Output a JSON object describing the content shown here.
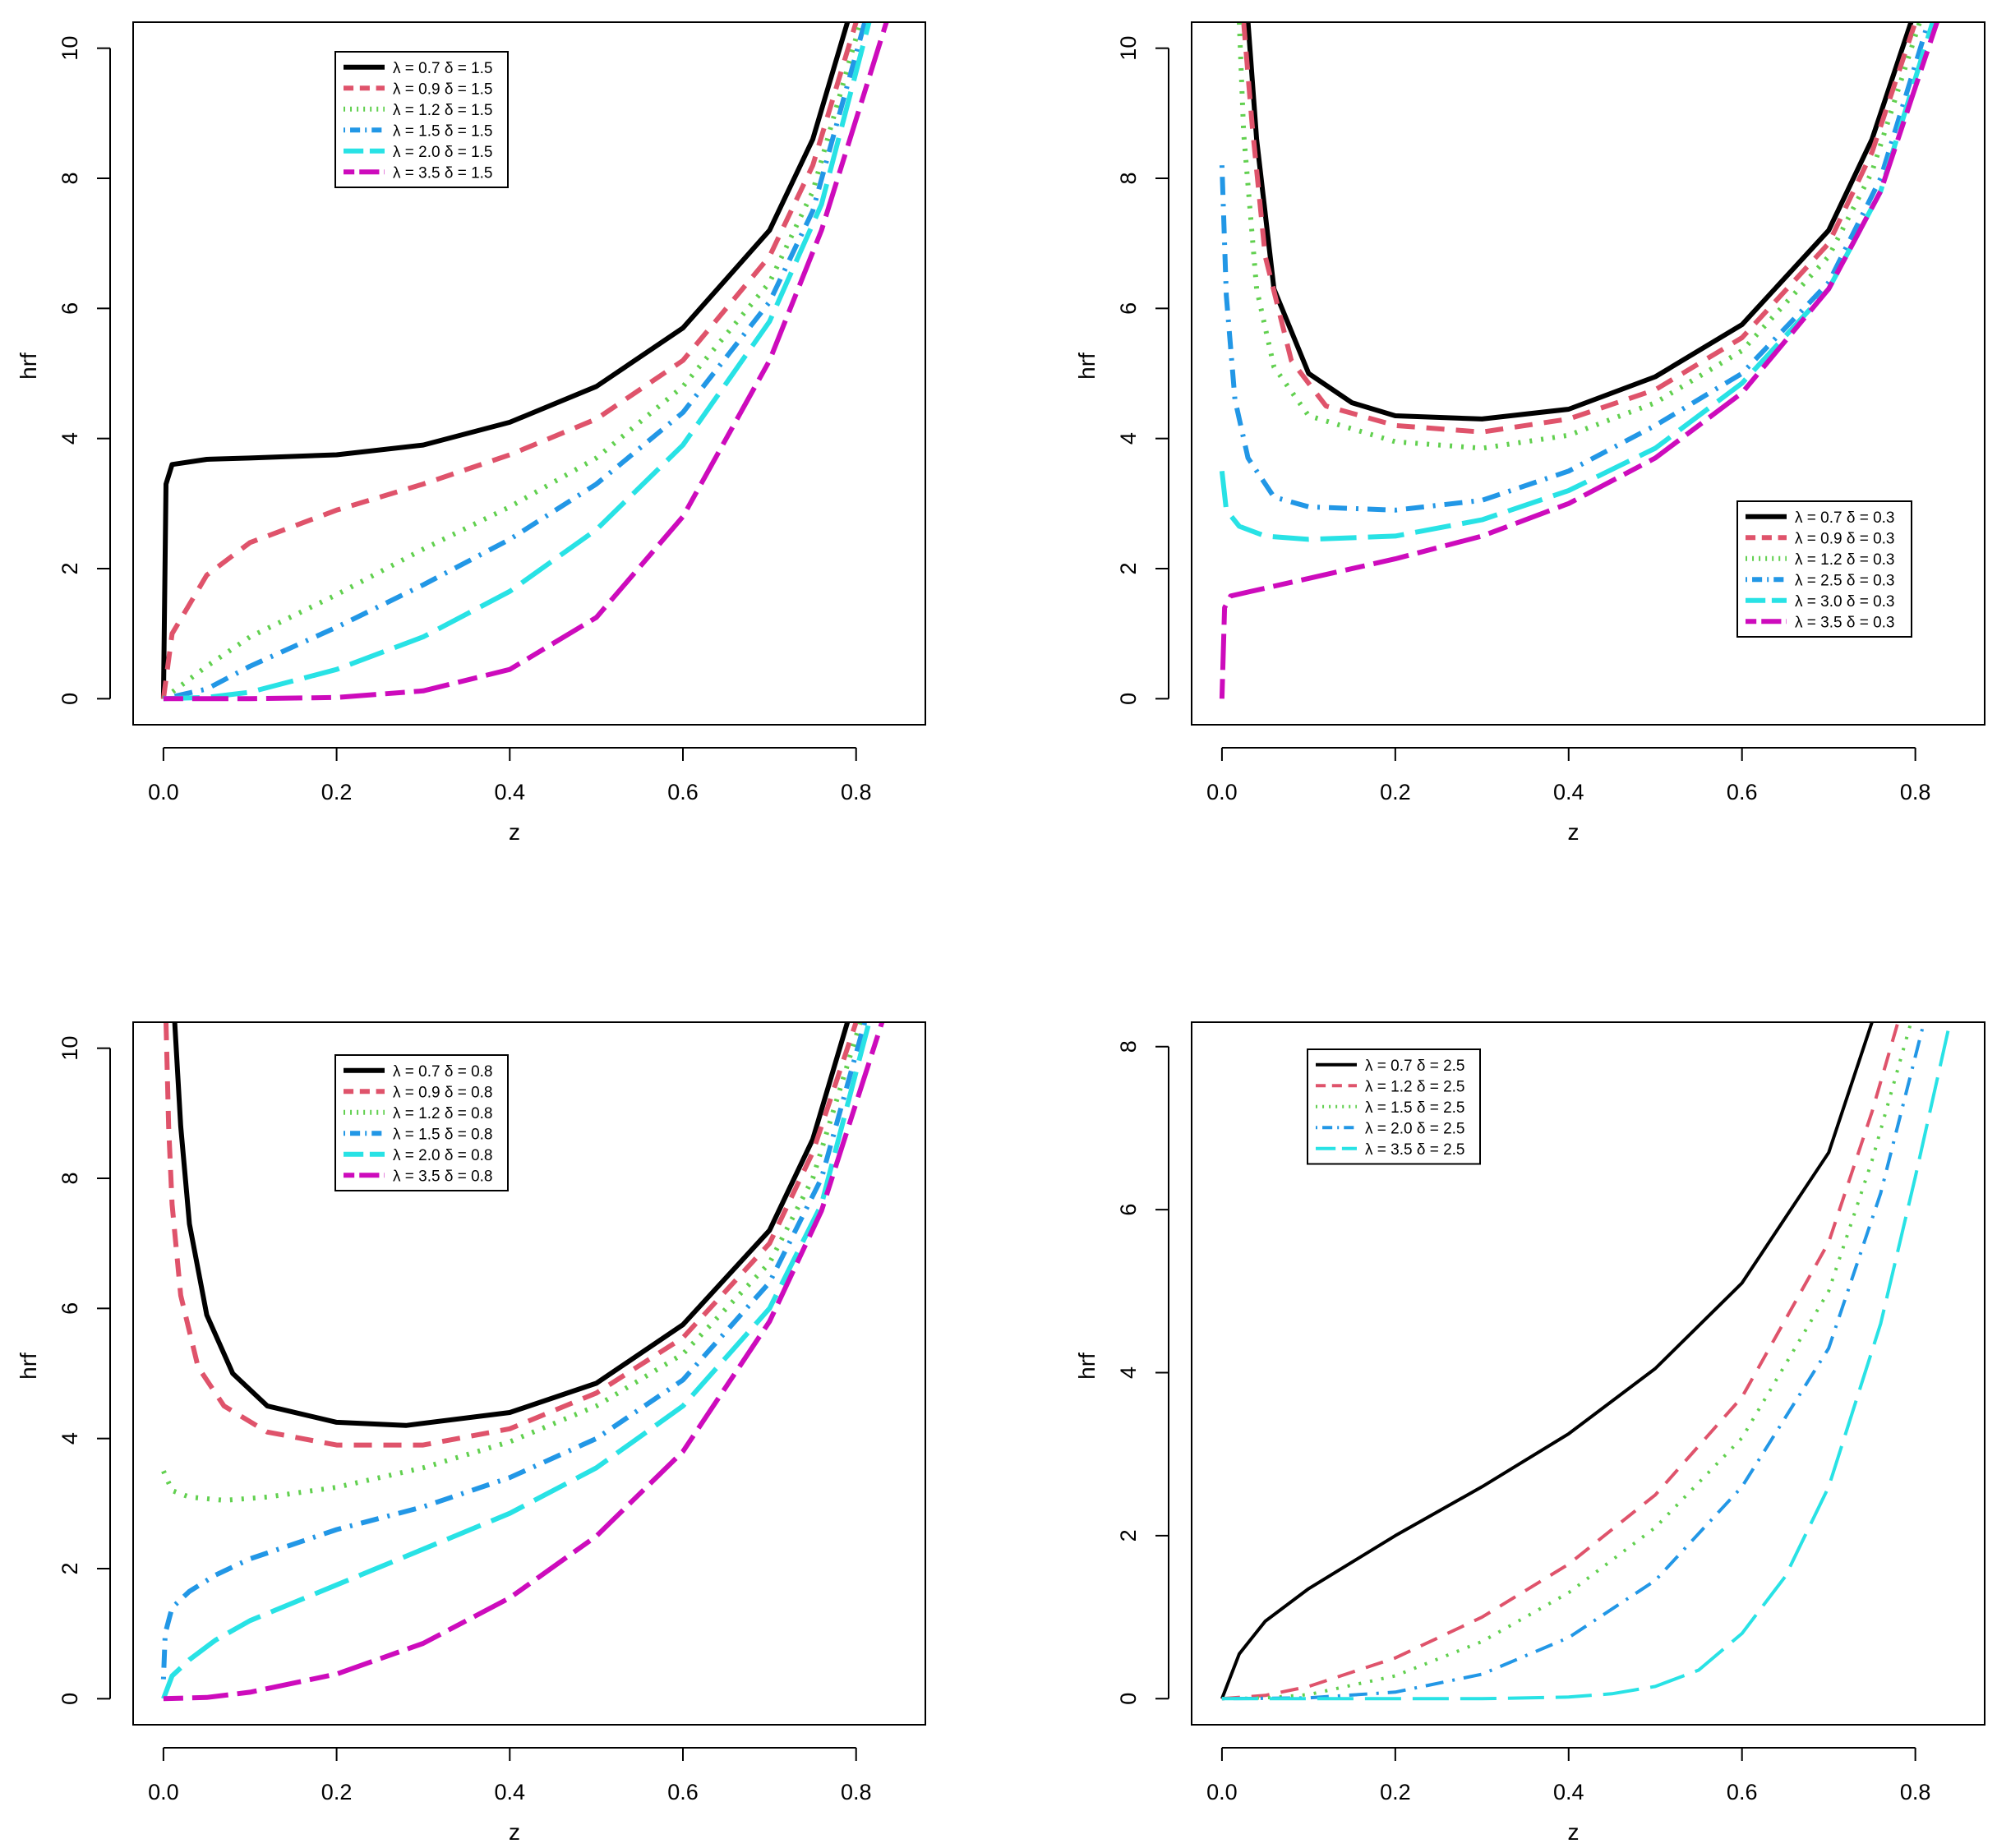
{
  "figure": {
    "colors": {
      "black": "#000000",
      "red": "#DF536B",
      "green": "#61D04F",
      "blue": "#2297E6",
      "cyan": "#28E2E5",
      "magenta": "#CD0BBC"
    }
  },
  "chart_data": [
    {
      "type": "line",
      "title": "",
      "xlabel": "z",
      "ylabel": "hrf",
      "xlim": [
        -0.035,
        0.88
      ],
      "ylim": [
        -0.4,
        10.4
      ],
      "x_ticks": [
        "0.0",
        "0.2",
        "0.4",
        "0.6",
        "0.8"
      ],
      "y_ticks": [
        "0",
        "2",
        "4",
        "6",
        "8",
        "10"
      ],
      "legend_position": "top-center",
      "series": [
        {
          "name": "λ = 0.7  δ = 1.5",
          "color": "black",
          "dash": "solid",
          "x": [
            0.0,
            0.003,
            0.01,
            0.05,
            0.1,
            0.2,
            0.3,
            0.4,
            0.5,
            0.6,
            0.7,
            0.75,
            0.79
          ],
          "y": [
            0.0,
            3.3,
            3.6,
            3.68,
            3.7,
            3.75,
            3.9,
            4.25,
            4.8,
            5.7,
            7.2,
            8.6,
            10.4
          ]
        },
        {
          "name": "λ = 0.9  δ = 1.5",
          "color": "red",
          "dash": "dashed",
          "x": [
            0.0,
            0.01,
            0.05,
            0.1,
            0.2,
            0.3,
            0.4,
            0.5,
            0.6,
            0.7,
            0.75,
            0.8
          ],
          "y": [
            0.0,
            1.0,
            1.9,
            2.4,
            2.9,
            3.3,
            3.75,
            4.3,
            5.2,
            6.8,
            8.2,
            10.4
          ]
        },
        {
          "name": "λ = 1.2  δ = 1.5",
          "color": "green",
          "dash": "dotted",
          "x": [
            0.0,
            0.05,
            0.1,
            0.2,
            0.3,
            0.4,
            0.5,
            0.6,
            0.7,
            0.75,
            0.805
          ],
          "y": [
            0.0,
            0.5,
            0.95,
            1.6,
            2.3,
            2.95,
            3.7,
            4.8,
            6.4,
            7.8,
            10.4
          ]
        },
        {
          "name": "λ = 1.5  δ = 1.5",
          "color": "blue",
          "dash": "dotdash",
          "x": [
            0.0,
            0.05,
            0.1,
            0.2,
            0.3,
            0.4,
            0.5,
            0.6,
            0.7,
            0.75,
            0.81
          ],
          "y": [
            0.0,
            0.15,
            0.5,
            1.1,
            1.75,
            2.45,
            3.3,
            4.4,
            6.1,
            7.5,
            10.4
          ]
        },
        {
          "name": "λ = 2.0  δ = 1.5",
          "color": "cyan",
          "dash": "longdash",
          "x": [
            0.0,
            0.05,
            0.1,
            0.2,
            0.3,
            0.4,
            0.5,
            0.6,
            0.7,
            0.76,
            0.815
          ],
          "y": [
            0.0,
            0.02,
            0.1,
            0.45,
            0.95,
            1.65,
            2.6,
            3.9,
            5.8,
            7.6,
            10.4
          ]
        },
        {
          "name": "λ = 3.5  δ = 1.5",
          "color": "magenta",
          "dash": "twodash",
          "x": [
            0.0,
            0.1,
            0.2,
            0.3,
            0.4,
            0.5,
            0.6,
            0.7,
            0.76,
            0.835
          ],
          "y": [
            0.0,
            0.0,
            0.02,
            0.12,
            0.45,
            1.25,
            2.8,
            5.2,
            7.2,
            10.4
          ]
        }
      ]
    },
    {
      "type": "line",
      "title": "",
      "xlabel": "z",
      "ylabel": "hrf",
      "xlim": [
        -0.035,
        0.88
      ],
      "ylim": [
        -0.4,
        10.4
      ],
      "x_ticks": [
        "0.0",
        "0.2",
        "0.4",
        "0.6",
        "0.8"
      ],
      "y_ticks": [
        "0",
        "2",
        "4",
        "6",
        "8",
        "10"
      ],
      "legend_position": "bottom-right",
      "series": [
        {
          "name": "λ = 0.7  δ = 0.3",
          "color": "black",
          "dash": "solid",
          "x": [
            0.03,
            0.04,
            0.06,
            0.1,
            0.15,
            0.2,
            0.3,
            0.4,
            0.5,
            0.6,
            0.7,
            0.75,
            0.795
          ],
          "y": [
            10.4,
            8.6,
            6.3,
            5.0,
            4.55,
            4.35,
            4.3,
            4.45,
            4.95,
            5.75,
            7.2,
            8.6,
            10.4
          ]
        },
        {
          "name": "λ = 0.9  δ = 0.3",
          "color": "red",
          "dash": "dashed",
          "x": [
            0.025,
            0.035,
            0.05,
            0.08,
            0.12,
            0.2,
            0.3,
            0.4,
            0.5,
            0.6,
            0.7,
            0.75,
            0.8
          ],
          "y": [
            10.4,
            8.8,
            6.8,
            5.2,
            4.5,
            4.2,
            4.1,
            4.3,
            4.75,
            5.55,
            7.0,
            8.4,
            10.4
          ]
        },
        {
          "name": "λ = 1.2  δ = 0.3",
          "color": "green",
          "dash": "dotted",
          "x": [
            0.02,
            0.025,
            0.04,
            0.06,
            0.1,
            0.2,
            0.3,
            0.4,
            0.5,
            0.6,
            0.7,
            0.75,
            0.805
          ],
          "y": [
            10.4,
            8.7,
            6.3,
            5.1,
            4.35,
            3.95,
            3.85,
            4.05,
            4.55,
            5.35,
            6.8,
            8.1,
            10.4
          ]
        },
        {
          "name": "λ = 2.5  δ = 0.3",
          "color": "blue",
          "dash": "dotdash",
          "x": [
            0.0,
            0.005,
            0.015,
            0.03,
            0.06,
            0.1,
            0.2,
            0.3,
            0.4,
            0.5,
            0.6,
            0.7,
            0.76,
            0.815
          ],
          "y": [
            8.2,
            6.2,
            4.6,
            3.7,
            3.1,
            2.95,
            2.9,
            3.05,
            3.5,
            4.2,
            5.0,
            6.4,
            8.0,
            10.4
          ]
        },
        {
          "name": "λ = 3.0  δ = 0.3",
          "color": "cyan",
          "dash": "longdash",
          "x": [
            0.0,
            0.005,
            0.02,
            0.05,
            0.1,
            0.2,
            0.3,
            0.4,
            0.5,
            0.6,
            0.7,
            0.76,
            0.82
          ],
          "y": [
            3.5,
            2.9,
            2.65,
            2.5,
            2.45,
            2.5,
            2.75,
            3.2,
            3.85,
            4.85,
            6.3,
            7.8,
            10.4
          ]
        },
        {
          "name": "λ = 3.5  δ = 0.3",
          "color": "magenta",
          "dash": "twodash",
          "x": [
            0.0,
            0.003,
            0.01,
            0.05,
            0.1,
            0.2,
            0.3,
            0.4,
            0.5,
            0.6,
            0.7,
            0.76,
            0.825
          ],
          "y": [
            0.0,
            1.4,
            1.58,
            1.7,
            1.85,
            2.15,
            2.5,
            3.0,
            3.7,
            4.7,
            6.3,
            7.8,
            10.4
          ]
        }
      ]
    },
    {
      "type": "line",
      "title": "",
      "xlabel": "z",
      "ylabel": "hrf",
      "xlim": [
        -0.035,
        0.88
      ],
      "ylim": [
        -0.4,
        10.4
      ],
      "x_ticks": [
        "0.0",
        "0.2",
        "0.4",
        "0.6",
        "0.8"
      ],
      "y_ticks": [
        "0",
        "2",
        "4",
        "6",
        "8",
        "10"
      ],
      "legend_position": "top-center",
      "series": [
        {
          "name": "λ = 0.7  δ = 0.8",
          "color": "black",
          "dash": "solid",
          "x": [
            0.013,
            0.02,
            0.03,
            0.05,
            0.08,
            0.12,
            0.2,
            0.28,
            0.4,
            0.5,
            0.6,
            0.7,
            0.75,
            0.79
          ],
          "y": [
            10.4,
            8.8,
            7.3,
            5.9,
            5.0,
            4.5,
            4.25,
            4.2,
            4.4,
            4.85,
            5.75,
            7.2,
            8.6,
            10.4
          ]
        },
        {
          "name": "λ = 0.9  δ = 0.8",
          "color": "red",
          "dash": "dashed",
          "x": [
            0.003,
            0.006,
            0.01,
            0.02,
            0.04,
            0.07,
            0.12,
            0.2,
            0.3,
            0.4,
            0.5,
            0.6,
            0.7,
            0.75,
            0.8
          ],
          "y": [
            10.4,
            8.8,
            7.6,
            6.2,
            5.1,
            4.5,
            4.1,
            3.9,
            3.9,
            4.15,
            4.7,
            5.55,
            7.0,
            8.4,
            10.4
          ]
        },
        {
          "name": "λ = 1.2  δ = 0.8",
          "color": "green",
          "dash": "dotted",
          "x": [
            0.0,
            0.01,
            0.03,
            0.07,
            0.12,
            0.2,
            0.3,
            0.4,
            0.5,
            0.6,
            0.7,
            0.75,
            0.805
          ],
          "y": [
            3.5,
            3.2,
            3.1,
            3.05,
            3.1,
            3.25,
            3.55,
            3.95,
            4.5,
            5.3,
            6.7,
            8.0,
            10.4
          ]
        },
        {
          "name": "λ = 1.5  δ = 0.8",
          "color": "blue",
          "dash": "dotdash",
          "x": [
            0.0,
            0.002,
            0.01,
            0.03,
            0.06,
            0.1,
            0.2,
            0.3,
            0.4,
            0.5,
            0.6,
            0.7,
            0.76,
            0.81
          ],
          "y": [
            0.3,
            1.0,
            1.4,
            1.65,
            1.9,
            2.15,
            2.6,
            2.95,
            3.4,
            4.0,
            4.9,
            6.4,
            8.0,
            10.4
          ]
        },
        {
          "name": "λ = 2.0  δ = 0.8",
          "color": "cyan",
          "dash": "longdash",
          "x": [
            0.0,
            0.01,
            0.03,
            0.06,
            0.1,
            0.2,
            0.3,
            0.4,
            0.5,
            0.6,
            0.7,
            0.76,
            0.815
          ],
          "y": [
            0.0,
            0.35,
            0.6,
            0.9,
            1.2,
            1.75,
            2.3,
            2.85,
            3.55,
            4.5,
            6.0,
            7.6,
            10.4
          ]
        },
        {
          "name": "λ = 3.5  δ = 0.8",
          "color": "magenta",
          "dash": "twodash",
          "x": [
            0.0,
            0.05,
            0.1,
            0.2,
            0.3,
            0.4,
            0.5,
            0.6,
            0.7,
            0.76,
            0.83
          ],
          "y": [
            0.0,
            0.02,
            0.1,
            0.38,
            0.85,
            1.55,
            2.5,
            3.8,
            5.8,
            7.5,
            10.4
          ]
        }
      ]
    },
    {
      "type": "line",
      "title": "",
      "xlabel": "z",
      "ylabel": "hrf",
      "xlim": [
        -0.035,
        0.88
      ],
      "ylim": [
        -0.32,
        8.3
      ],
      "x_ticks": [
        "0.0",
        "0.2",
        "0.4",
        "0.6",
        "0.8"
      ],
      "y_ticks": [
        "0",
        "2",
        "4",
        "6",
        "8"
      ],
      "legend_position": "top-left",
      "series": [
        {
          "name": "λ = 0.7  δ = 2.5",
          "color": "black",
          "dash": "solid",
          "x": [
            0.0,
            0.02,
            0.05,
            0.1,
            0.2,
            0.3,
            0.4,
            0.5,
            0.6,
            0.7,
            0.75
          ],
          "y": [
            0.0,
            0.55,
            0.95,
            1.35,
            2.0,
            2.6,
            3.25,
            4.05,
            5.1,
            6.7,
            8.3
          ]
        },
        {
          "name": "λ = 1.2  δ = 2.5",
          "color": "red",
          "dash": "dashed",
          "x": [
            0.0,
            0.05,
            0.1,
            0.2,
            0.3,
            0.4,
            0.5,
            0.6,
            0.7,
            0.75,
            0.78
          ],
          "y": [
            0.0,
            0.04,
            0.15,
            0.5,
            1.0,
            1.65,
            2.5,
            3.7,
            5.6,
            7.2,
            8.3
          ]
        },
        {
          "name": "λ = 1.5  δ = 2.5",
          "color": "green",
          "dash": "dotted",
          "x": [
            0.0,
            0.05,
            0.1,
            0.2,
            0.3,
            0.4,
            0.5,
            0.6,
            0.7,
            0.75,
            0.795
          ],
          "y": [
            0.0,
            0.01,
            0.05,
            0.28,
            0.7,
            1.3,
            2.1,
            3.2,
            5.0,
            6.6,
            8.3
          ]
        },
        {
          "name": "λ = 2.0  δ = 2.5",
          "color": "blue",
          "dash": "dotdash",
          "x": [
            0.0,
            0.1,
            0.2,
            0.3,
            0.4,
            0.5,
            0.6,
            0.7,
            0.76,
            0.81
          ],
          "y": [
            0.0,
            0.01,
            0.08,
            0.3,
            0.75,
            1.45,
            2.6,
            4.3,
            6.2,
            8.3
          ]
        },
        {
          "name": "λ = 3.5  δ = 2.5",
          "color": "cyan",
          "dash": "longdash",
          "x": [
            0.0,
            0.2,
            0.3,
            0.4,
            0.45,
            0.5,
            0.55,
            0.6,
            0.65,
            0.7,
            0.76,
            0.8,
            0.84
          ],
          "y": [
            0.0,
            0.0,
            0.0,
            0.02,
            0.06,
            0.15,
            0.35,
            0.8,
            1.5,
            2.6,
            4.6,
            6.4,
            8.3
          ]
        }
      ]
    }
  ]
}
